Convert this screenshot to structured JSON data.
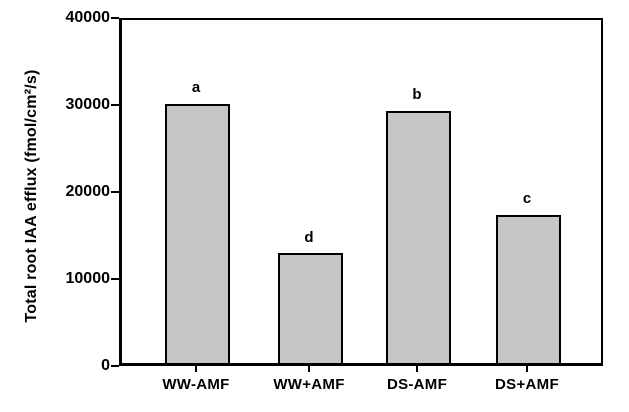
{
  "figure": {
    "background_color": "#ffffff",
    "axis_color": "#000000"
  },
  "chart_data": {
    "type": "bar",
    "title": "",
    "xlabel": "",
    "ylabel": "Total root IAA efflux (fmol/cm²/s)",
    "ylim": [
      0,
      40000
    ],
    "yticks": [
      0,
      10000,
      20000,
      30000,
      40000
    ],
    "ytick_labels": [
      "0",
      "10000",
      "20000",
      "30000",
      "40000"
    ],
    "grid": false,
    "legend": "none",
    "frame": "full-box",
    "bar_fill_color": "#c6c6c6",
    "bar_border_color": "#000000",
    "categories": [
      "WW-AMF",
      "WW+AMF",
      "DS-AMF",
      "DS+AMF"
    ],
    "values": [
      29800,
      12600,
      29000,
      17000
    ],
    "error_bars": [
      300,
      300,
      300,
      300
    ],
    "sig_letters": [
      "a",
      "d",
      "b",
      "c"
    ]
  }
}
